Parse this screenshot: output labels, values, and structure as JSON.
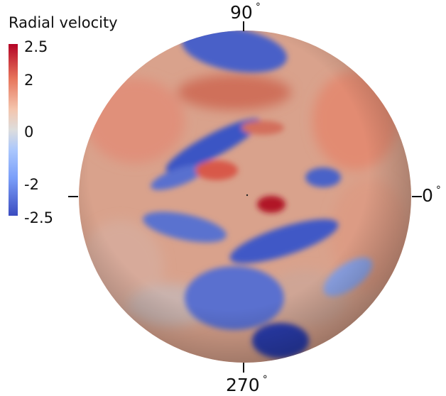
{
  "legend": {
    "title": "Radial velocity",
    "ticks": [
      "2.5",
      "2",
      "0",
      "-2",
      "-2.5"
    ],
    "colors": [
      "#b40426",
      "#e7745b",
      "#dddddd",
      "#7b9ff9",
      "#3b4cc0"
    ]
  },
  "axes": {
    "top": "90",
    "right": "0",
    "bottom": "270",
    "degree_symbol": "°"
  }
}
